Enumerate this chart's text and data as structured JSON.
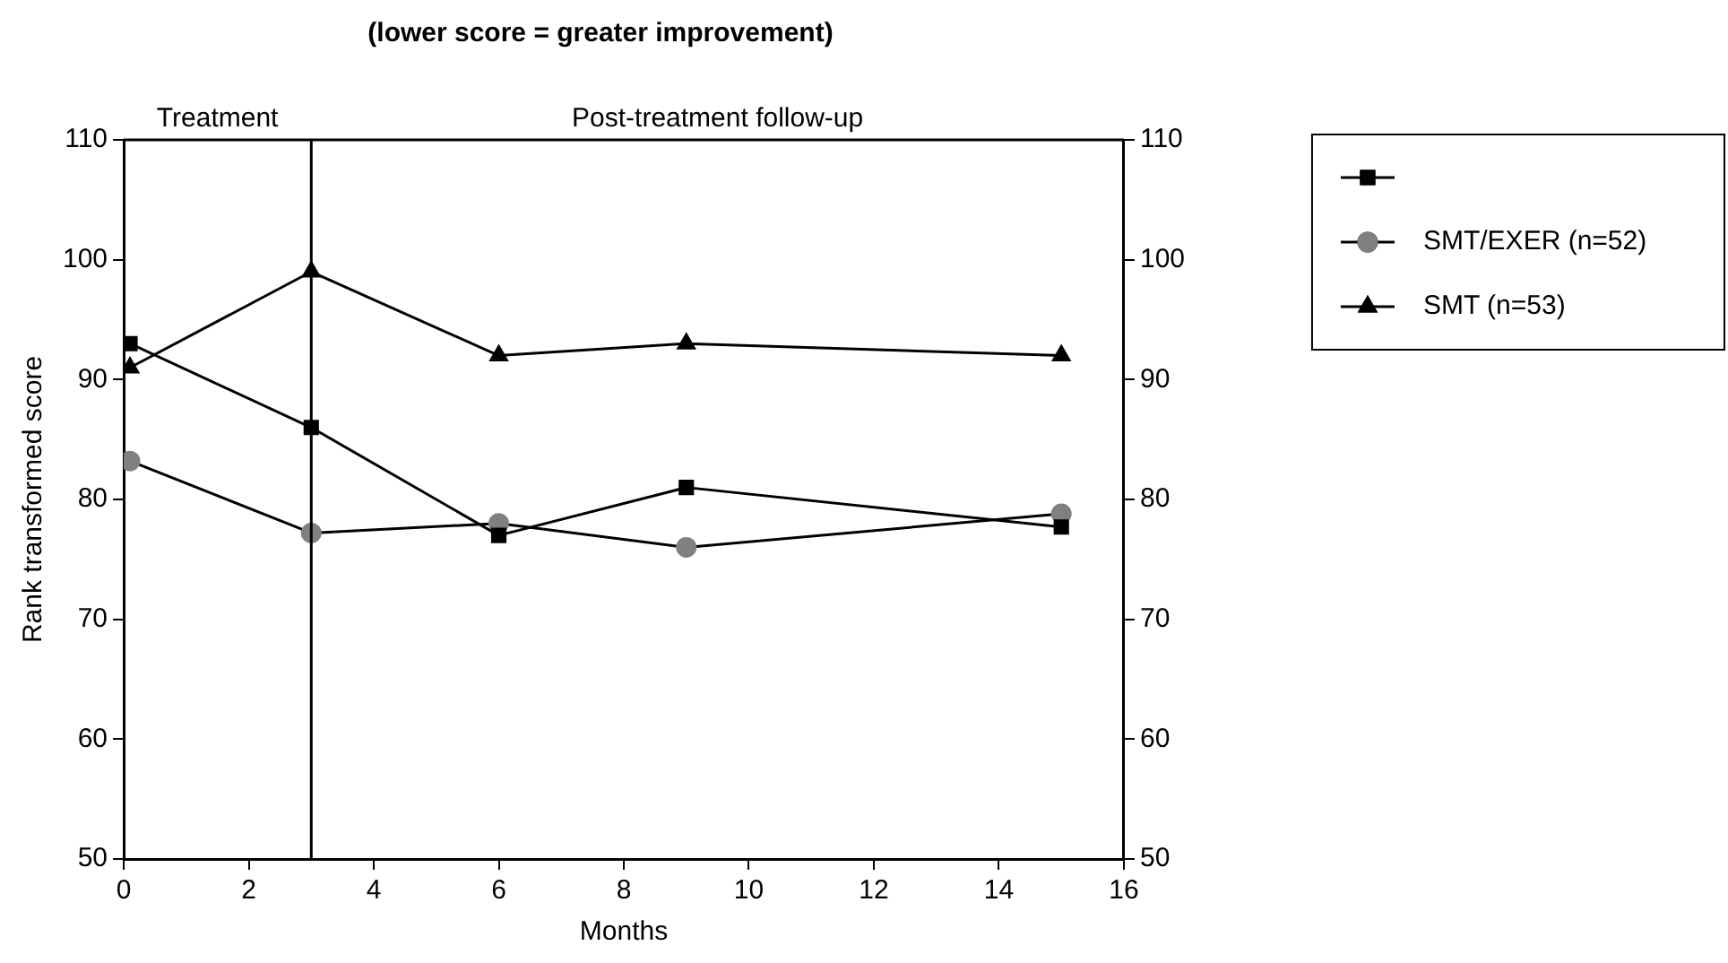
{
  "chart_data": {
    "type": "line",
    "title": "(lower score = greater improvement)",
    "xlabel": "Months",
    "ylabel": "Rank transformed score",
    "series": [
      {
        "color": "#000000",
        "marker": "square",
        "x": [
          0.1,
          3,
          6,
          9,
          15
        ],
        "values": [
          93,
          86,
          77,
          81,
          77.7
        ]
      },
      {
        "name": "SMT/EXER (n=52)",
        "color": "#808080",
        "marker": "circle",
        "x": [
          0.1,
          3,
          6,
          9,
          15
        ],
        "values": [
          83.2,
          77.2,
          78,
          76,
          78.8
        ]
      },
      {
        "name": "SMT (n=53)",
        "color": "#000000",
        "marker": "triangle",
        "x": [
          0.1,
          3,
          6,
          9,
          15
        ],
        "values": [
          91,
          99,
          92,
          93,
          92
        ]
      }
    ],
    "xlim": [
      0,
      16
    ],
    "xticks": [
      0,
      2,
      4,
      6,
      8,
      10,
      12,
      14,
      16
    ],
    "ylim": [
      50,
      110
    ],
    "yticks": [
      50,
      60,
      70,
      80,
      90,
      100,
      110
    ],
    "y2lim": [
      50,
      110
    ],
    "y2ticks": [
      50,
      60,
      70,
      80,
      90,
      100,
      110
    ],
    "ref_lines": [
      {
        "axis": "x",
        "value": 3,
        "color": "#000000"
      }
    ],
    "annotations": [
      "Treatment",
      "Post-treatment follow-up"
    ],
    "grid": false,
    "legend": "top right",
    "line_style": "solid"
  }
}
